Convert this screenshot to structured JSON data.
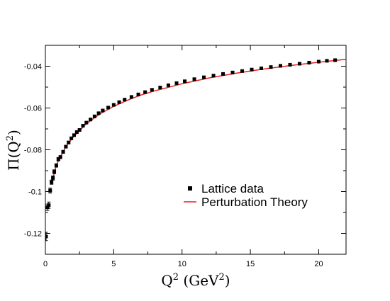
{
  "chart_data": {
    "type": "scatter",
    "xlabel_main": "Q",
    "xlabel_sup": "2",
    "xlabel_rest": " (GeV",
    "xlabel_sup2": "2",
    "xlabel_close": ")",
    "ylabel_main": "Π(Q",
    "ylabel_sup": "2",
    "ylabel_close": ")",
    "xlim": [
      0,
      22
    ],
    "ylim": [
      -0.13,
      -0.03
    ],
    "x_ticks": [
      0,
      5,
      10,
      15,
      20
    ],
    "x_tick_labels": [
      "0",
      "5",
      "10",
      "15",
      "20"
    ],
    "y_ticks": [
      -0.12,
      -0.1,
      -0.08,
      -0.06,
      -0.04
    ],
    "y_tick_labels": [
      "-0.12",
      "-0.1",
      "-0.08",
      "-0.06",
      "-0.04"
    ],
    "grid": false,
    "legend_position": "center-right",
    "series": [
      {
        "name": "Lattice data",
        "kind": "points",
        "color": "#000000",
        "x": [
          0.05,
          0.15,
          0.25,
          0.35,
          0.45,
          0.55,
          0.65,
          0.8,
          0.95,
          1.1,
          1.3,
          1.5,
          1.7,
          1.9,
          2.1,
          2.3,
          2.5,
          2.75,
          3.0,
          3.3,
          3.6,
          3.9,
          4.2,
          4.6,
          5.0,
          5.4,
          5.8,
          6.3,
          6.8,
          7.3,
          7.8,
          8.4,
          9.0,
          9.6,
          10.2,
          10.9,
          11.6,
          12.3,
          13.0,
          13.7,
          14.4,
          15.1,
          15.8,
          16.5,
          17.2,
          17.9,
          18.6,
          19.3,
          20.0,
          20.6,
          21.2
        ],
        "y": [
          -0.1215,
          -0.1075,
          -0.1065,
          -0.0995,
          -0.0955,
          -0.0935,
          -0.0905,
          -0.0875,
          -0.0845,
          -0.0835,
          -0.081,
          -0.0785,
          -0.0765,
          -0.0745,
          -0.073,
          -0.0715,
          -0.0705,
          -0.0685,
          -0.067,
          -0.0655,
          -0.064,
          -0.0625,
          -0.0612,
          -0.0598,
          -0.0585,
          -0.0572,
          -0.056,
          -0.0547,
          -0.0535,
          -0.0524,
          -0.0513,
          -0.0502,
          -0.0491,
          -0.0481,
          -0.0472,
          -0.0462,
          -0.0453,
          -0.0445,
          -0.0437,
          -0.043,
          -0.0423,
          -0.0416,
          -0.041,
          -0.0404,
          -0.0398,
          -0.0393,
          -0.0388,
          -0.0383,
          -0.0378,
          -0.0374,
          -0.0371
        ],
        "err": [
          0.002,
          0.0015,
          0.0015,
          0.0012,
          0.001,
          0.001,
          0.0009,
          0.0008,
          0.0008,
          0.0007,
          0.0007,
          0.0006,
          0.0006,
          0.0006,
          0.0005,
          0.0005,
          0.0005,
          0.0005,
          0.0005,
          0.0005,
          0.0004,
          0.0004,
          0.0004,
          0.0004,
          0.0004,
          0.0004,
          0.0004,
          0.0004,
          0.0004,
          0.0004,
          0.0004,
          0.0004,
          0.0004,
          0.0004,
          0.0004,
          0.0004,
          0.0004,
          0.0004,
          0.0004,
          0.0004,
          0.0004,
          0.0004,
          0.0004,
          0.0004,
          0.0004,
          0.0004,
          0.0004,
          0.0004,
          0.0004,
          0.0004,
          0.0004
        ]
      },
      {
        "name": "Perturbation Theory",
        "kind": "line",
        "color": "#e8211a",
        "x": [
          0.5,
          0.8,
          1.0,
          1.5,
          2.0,
          3.0,
          4.0,
          5.0,
          6.0,
          7.0,
          8.0,
          10.0,
          12.0,
          14.0,
          16.0,
          18.0,
          20.0,
          22.0
        ],
        "y": [
          -0.095,
          -0.0875,
          -0.0845,
          -0.0785,
          -0.0742,
          -0.0675,
          -0.0628,
          -0.0592,
          -0.0563,
          -0.0538,
          -0.0518,
          -0.0484,
          -0.0456,
          -0.0433,
          -0.0413,
          -0.0396,
          -0.0381,
          -0.0367
        ]
      }
    ]
  }
}
